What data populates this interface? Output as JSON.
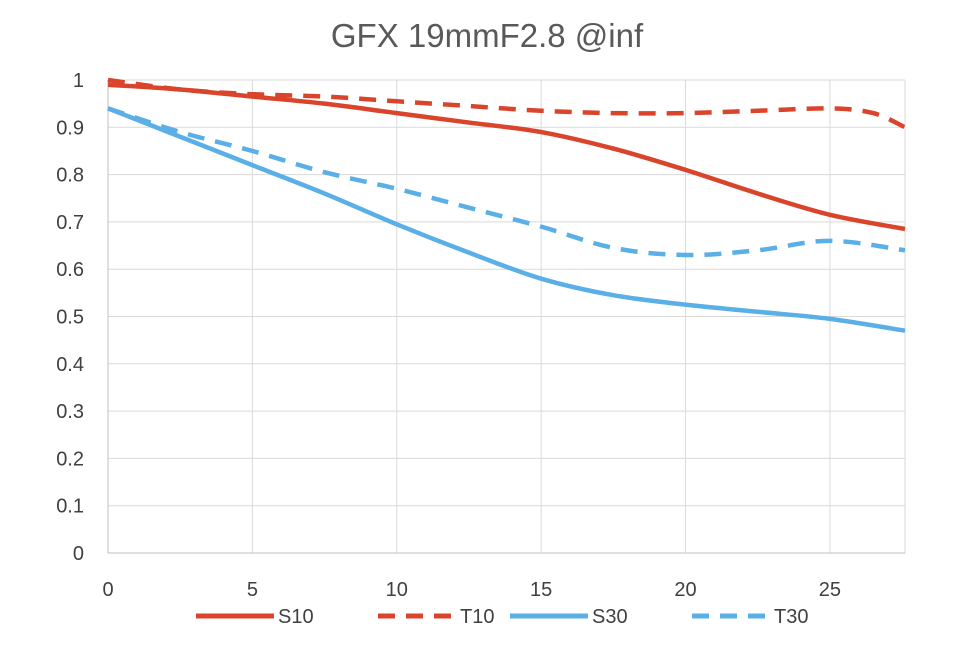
{
  "chart_data": {
    "type": "line",
    "title": "GFX 19mmF2.8 @inf",
    "xlabel": "",
    "ylabel": "",
    "xlim": [
      0,
      27.6
    ],
    "ylim": [
      0,
      1
    ],
    "xticks": [
      0,
      5,
      10,
      15,
      20,
      25
    ],
    "xtick_labels": [
      "0",
      "5",
      "10",
      "15",
      "20",
      "25"
    ],
    "yticks": [
      0,
      0.1,
      0.2,
      0.3,
      0.4,
      0.5,
      0.6,
      0.7,
      0.8,
      0.9,
      1
    ],
    "ytick_labels": [
      "0",
      "0.1",
      "0.2",
      "0.3",
      "0.4",
      "0.5",
      "0.6",
      "0.7",
      "0.8",
      "0.9",
      "1"
    ],
    "grid": true,
    "legend_position": "bottom",
    "series": [
      {
        "name": "S10",
        "color": "#d9442b",
        "dashed": false,
        "x": [
          0,
          2.5,
          5,
          7.5,
          10,
          12.5,
          15,
          17.5,
          20,
          22.5,
          25,
          27.6
        ],
        "y": [
          0.99,
          0.98,
          0.965,
          0.95,
          0.93,
          0.91,
          0.89,
          0.855,
          0.81,
          0.76,
          0.715,
          0.685
        ]
      },
      {
        "name": "T10",
        "color": "#d9442b",
        "dashed": true,
        "x": [
          0,
          2.5,
          5,
          7.5,
          10,
          12.5,
          15,
          17.5,
          20,
          22.5,
          25,
          26.5,
          27.6
        ],
        "y": [
          1.0,
          0.98,
          0.97,
          0.965,
          0.955,
          0.945,
          0.935,
          0.93,
          0.93,
          0.935,
          0.94,
          0.93,
          0.9
        ]
      },
      {
        "name": "S30",
        "color": "#5aafe6",
        "dashed": false,
        "x": [
          0,
          2.5,
          5,
          7.5,
          10,
          12.5,
          15,
          17.5,
          20,
          22.5,
          25,
          27.6
        ],
        "y": [
          0.94,
          0.88,
          0.82,
          0.76,
          0.695,
          0.635,
          0.58,
          0.545,
          0.525,
          0.51,
          0.495,
          0.47
        ]
      },
      {
        "name": "T30",
        "color": "#5aafe6",
        "dashed": true,
        "x": [
          0,
          2.5,
          5,
          7.5,
          10,
          12.5,
          15,
          17.5,
          20,
          22.5,
          25,
          27.6
        ],
        "y": [
          0.94,
          0.89,
          0.85,
          0.805,
          0.77,
          0.73,
          0.69,
          0.645,
          0.63,
          0.64,
          0.66,
          0.64
        ]
      }
    ]
  }
}
